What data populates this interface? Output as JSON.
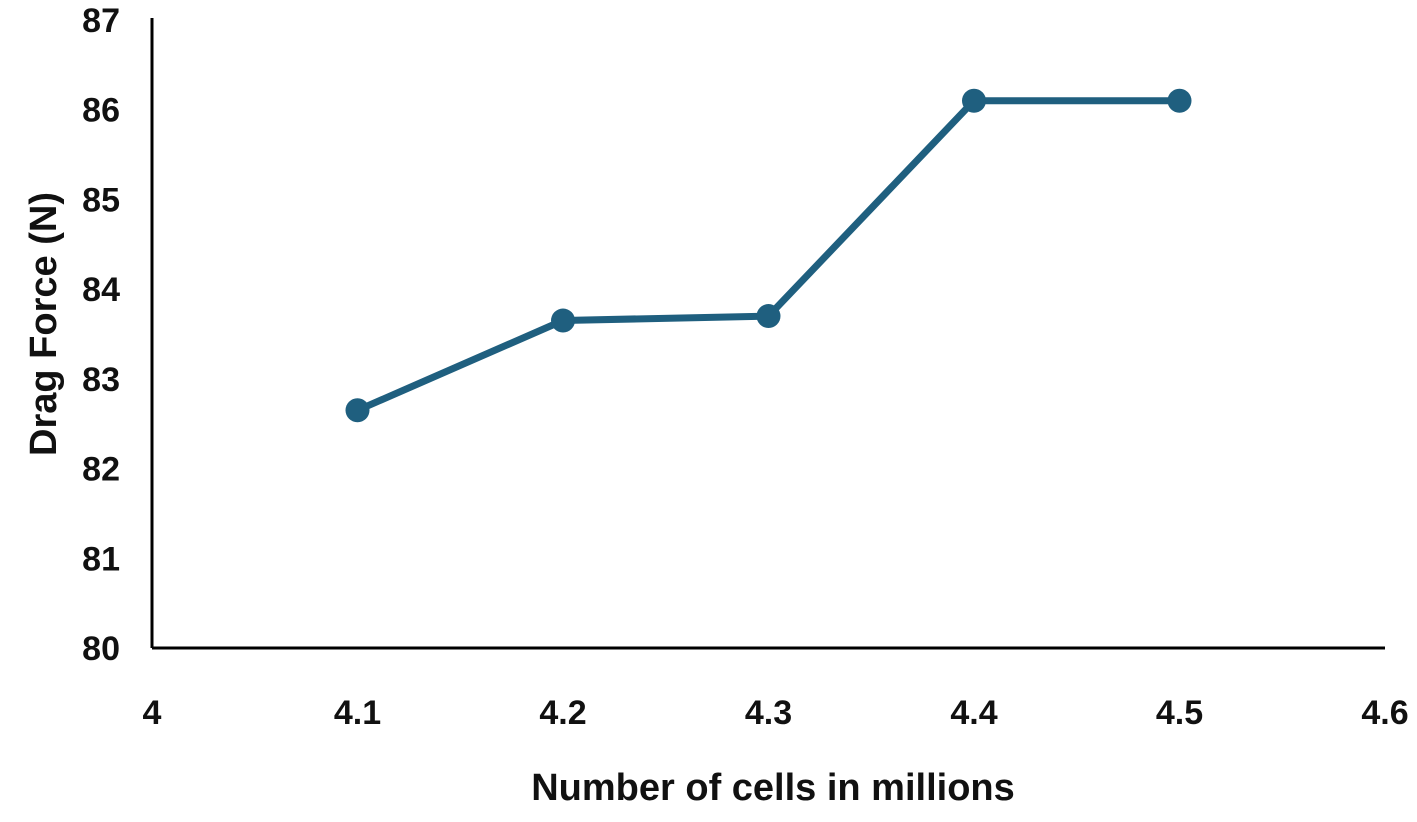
{
  "chart_data": {
    "type": "line",
    "title": "",
    "xlabel": "Number of cells in millions",
    "ylabel": "Drag Force (N)",
    "xlim": [
      4,
      4.6
    ],
    "ylim": [
      80,
      87
    ],
    "x_ticks": [
      "4",
      "4.1",
      "4.2",
      "4.3",
      "4.4",
      "4.5",
      "4.6"
    ],
    "y_ticks": [
      "80",
      "81",
      "82",
      "83",
      "84",
      "85",
      "86",
      "87"
    ],
    "grid": false,
    "legend": "none",
    "series": [
      {
        "x": [
          4.1,
          4.2,
          4.3,
          4.4,
          4.5
        ],
        "values": [
          82.65,
          83.65,
          83.7,
          86.1,
          86.1
        ],
        "color": "#1f5f7f"
      }
    ]
  }
}
